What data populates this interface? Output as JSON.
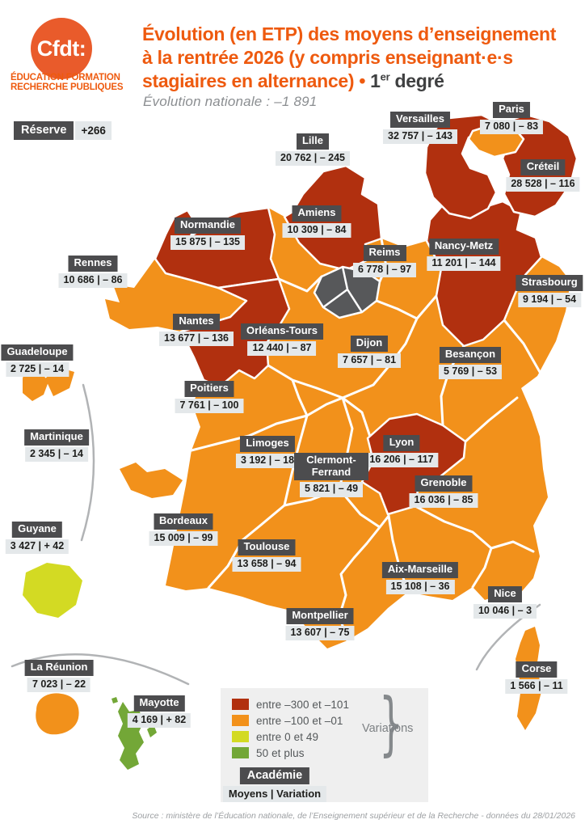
{
  "logo": {
    "brand": "Cfdt:",
    "line1": "ÉDUCATION FORMATION",
    "line2": "RECHERCHE PUBLIQUES"
  },
  "header": {
    "title_line1": "Évolution (en ETP) des moyens d’enseignement",
    "title_line2": "à la rentrée 2026 (y compris enseignant·e·s",
    "title_line3_orange": "stagiaires en alternance) • ",
    "title_line3_num": "1",
    "title_line3_sup": "er",
    "title_line3_end": " degré",
    "subtitle": "Évolution nationale : –1 891"
  },
  "reserve": {
    "label": "Réserve",
    "value": "+266"
  },
  "ui": {
    "separator": "|"
  },
  "academies": [
    {
      "id": "lille",
      "name": "Lille",
      "moyens": "20 762",
      "variation": "– 245",
      "category": "neg_large"
    },
    {
      "id": "versailles",
      "name": "Versailles",
      "moyens": "32 757",
      "variation": "– 143",
      "category": "neg_large"
    },
    {
      "id": "paris",
      "name": "Paris",
      "moyens": "7 080",
      "variation": "– 83",
      "category": "neg_small"
    },
    {
      "id": "creteil",
      "name": "Créteil",
      "moyens": "28 528",
      "variation": "– 116",
      "category": "neg_large"
    },
    {
      "id": "amiens",
      "name": "Amiens",
      "moyens": "10 309",
      "variation": "– 84",
      "category": "neg_small"
    },
    {
      "id": "normandie",
      "name": "Normandie",
      "moyens": "15 875",
      "variation": "– 135",
      "category": "neg_large"
    },
    {
      "id": "rennes",
      "name": "Rennes",
      "moyens": "10 686",
      "variation": "– 86",
      "category": "neg_small"
    },
    {
      "id": "reims",
      "name": "Reims",
      "moyens": "6 778",
      "variation": "– 97",
      "category": "neg_small"
    },
    {
      "id": "nancy-metz",
      "name": "Nancy-Metz",
      "moyens": "11 201",
      "variation": "– 144",
      "category": "neg_large"
    },
    {
      "id": "strasbourg",
      "name": "Strasbourg",
      "moyens": "9 194",
      "variation": "– 54",
      "category": "neg_small"
    },
    {
      "id": "nantes",
      "name": "Nantes",
      "moyens": "13 677",
      "variation": "– 136",
      "category": "neg_large"
    },
    {
      "id": "orleans-tours",
      "name": "Orléans-Tours",
      "moyens": "12 440",
      "variation": "– 87",
      "category": "neg_small"
    },
    {
      "id": "dijon",
      "name": "Dijon",
      "moyens": "7 657",
      "variation": "– 81",
      "category": "neg_small"
    },
    {
      "id": "besancon",
      "name": "Besançon",
      "moyens": "5 769",
      "variation": "– 53",
      "category": "neg_small"
    },
    {
      "id": "guadeloupe",
      "name": "Guadeloupe",
      "moyens": "2 725",
      "variation": "– 14",
      "category": "neg_small"
    },
    {
      "id": "poitiers",
      "name": "Poitiers",
      "moyens": "7 761",
      "variation": "– 100",
      "category": "neg_small"
    },
    {
      "id": "martinique",
      "name": "Martinique",
      "moyens": "2 345",
      "variation": "– 14",
      "category": "neg_small"
    },
    {
      "id": "limoges",
      "name": "Limoges",
      "moyens": "3 192",
      "variation": "– 18",
      "category": "neg_small"
    },
    {
      "id": "lyon",
      "name": "Lyon",
      "moyens": "16 206",
      "variation": "– 117",
      "category": "neg_large"
    },
    {
      "id": "clermont-ferrand",
      "name": "Clermont-Ferrand",
      "moyens": "5 821",
      "variation": "– 49",
      "category": "neg_small"
    },
    {
      "id": "grenoble",
      "name": "Grenoble",
      "moyens": "16 036",
      "variation": "– 85",
      "category": "neg_small"
    },
    {
      "id": "guyane",
      "name": "Guyane",
      "moyens": "3 427",
      "variation": "+ 42",
      "category": "pos_small"
    },
    {
      "id": "bordeaux",
      "name": "Bordeaux",
      "moyens": "15 009",
      "variation": "– 99",
      "category": "neg_small"
    },
    {
      "id": "toulouse",
      "name": "Toulouse",
      "moyens": "13 658",
      "variation": "– 94",
      "category": "neg_small"
    },
    {
      "id": "aix-marseille",
      "name": "Aix-Marseille",
      "moyens": "15 108",
      "variation": "– 36",
      "category": "neg_small"
    },
    {
      "id": "nice",
      "name": "Nice",
      "moyens": "10 046",
      "variation": "– 3",
      "category": "neg_small"
    },
    {
      "id": "montpellier",
      "name": "Montpellier",
      "moyens": "13 607",
      "variation": "– 75",
      "category": "neg_small"
    },
    {
      "id": "corse",
      "name": "Corse",
      "moyens": "1 566",
      "variation": "– 11",
      "category": "neg_small"
    },
    {
      "id": "la-reunion",
      "name": "La Réunion",
      "moyens": "7 023",
      "variation": "– 22",
      "category": "neg_small"
    },
    {
      "id": "mayotte",
      "name": "Mayotte",
      "moyens": "4 169",
      "variation": "+ 82",
      "category": "pos_large"
    }
  ],
  "legend": {
    "items": [
      {
        "label": "entre –300 et –101",
        "category": "neg_large"
      },
      {
        "label": "entre –100 et –01",
        "category": "neg_small"
      },
      {
        "label": "entre 0 et 49",
        "category": "pos_small"
      },
      {
        "label": "50 et plus",
        "category": "pos_large"
      }
    ],
    "brace": "}",
    "brace_label": "Variations",
    "key_title": "Académie",
    "key_subtitle": "Moyens | Variation"
  },
  "source": "Source : ministère de l’Éducation nationale, de l’Enseignement supérieur et de la Recherche - données du 28/01/2026",
  "colors": {
    "neg_large": "#b1300f",
    "neg_small": "#f2911b",
    "pos_small": "#d3da23",
    "pos_large": "#73a737",
    "idf": "#57585a",
    "brand_orange": "#e95b2b",
    "title_orange": "#ee5a0f",
    "title_dark": "#3f4041",
    "label_dark_bg": "#4c4c4e",
    "label_light_bg": "#e4e8ea"
  }
}
